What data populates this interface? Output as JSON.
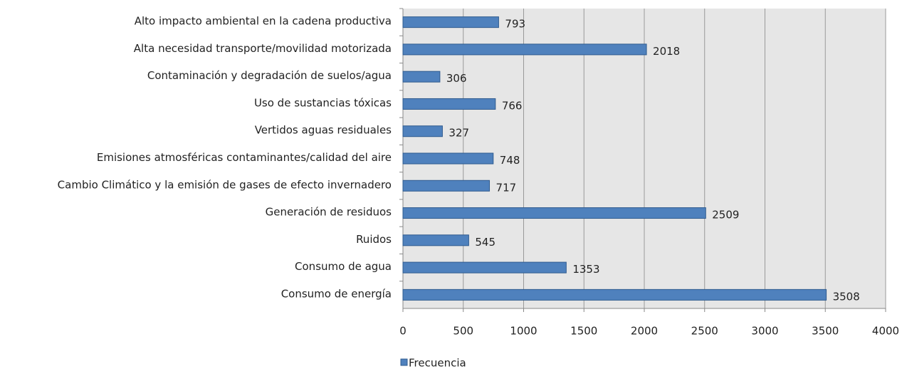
{
  "chart_data": {
    "type": "bar",
    "orientation": "horizontal",
    "categories": [
      "Alto impacto ambiental en la cadena productiva",
      "Alta necesidad transporte/movilidad motorizada",
      "Contaminación y degradación de suelos/agua",
      "Uso de sustancias tóxicas",
      "Vertidos aguas residuales",
      "Emisiones atmosféricas contaminantes/calidad del aire",
      "Cambio Climático y la emisión de gases de efecto invernadero",
      "Generación de residuos",
      "Ruidos",
      "Consumo de agua",
      "Consumo de energía"
    ],
    "series": [
      {
        "name": "Frecuencia",
        "color": "#4f81bd",
        "values": [
          793,
          2018,
          306,
          766,
          327,
          748,
          717,
          2509,
          545,
          1353,
          3508
        ]
      }
    ],
    "xlim": [
      0,
      4000
    ],
    "xticks": [
      0,
      500,
      1000,
      1500,
      2000,
      2500,
      3000,
      3500,
      4000
    ],
    "grid": true,
    "legend": "bottom"
  }
}
